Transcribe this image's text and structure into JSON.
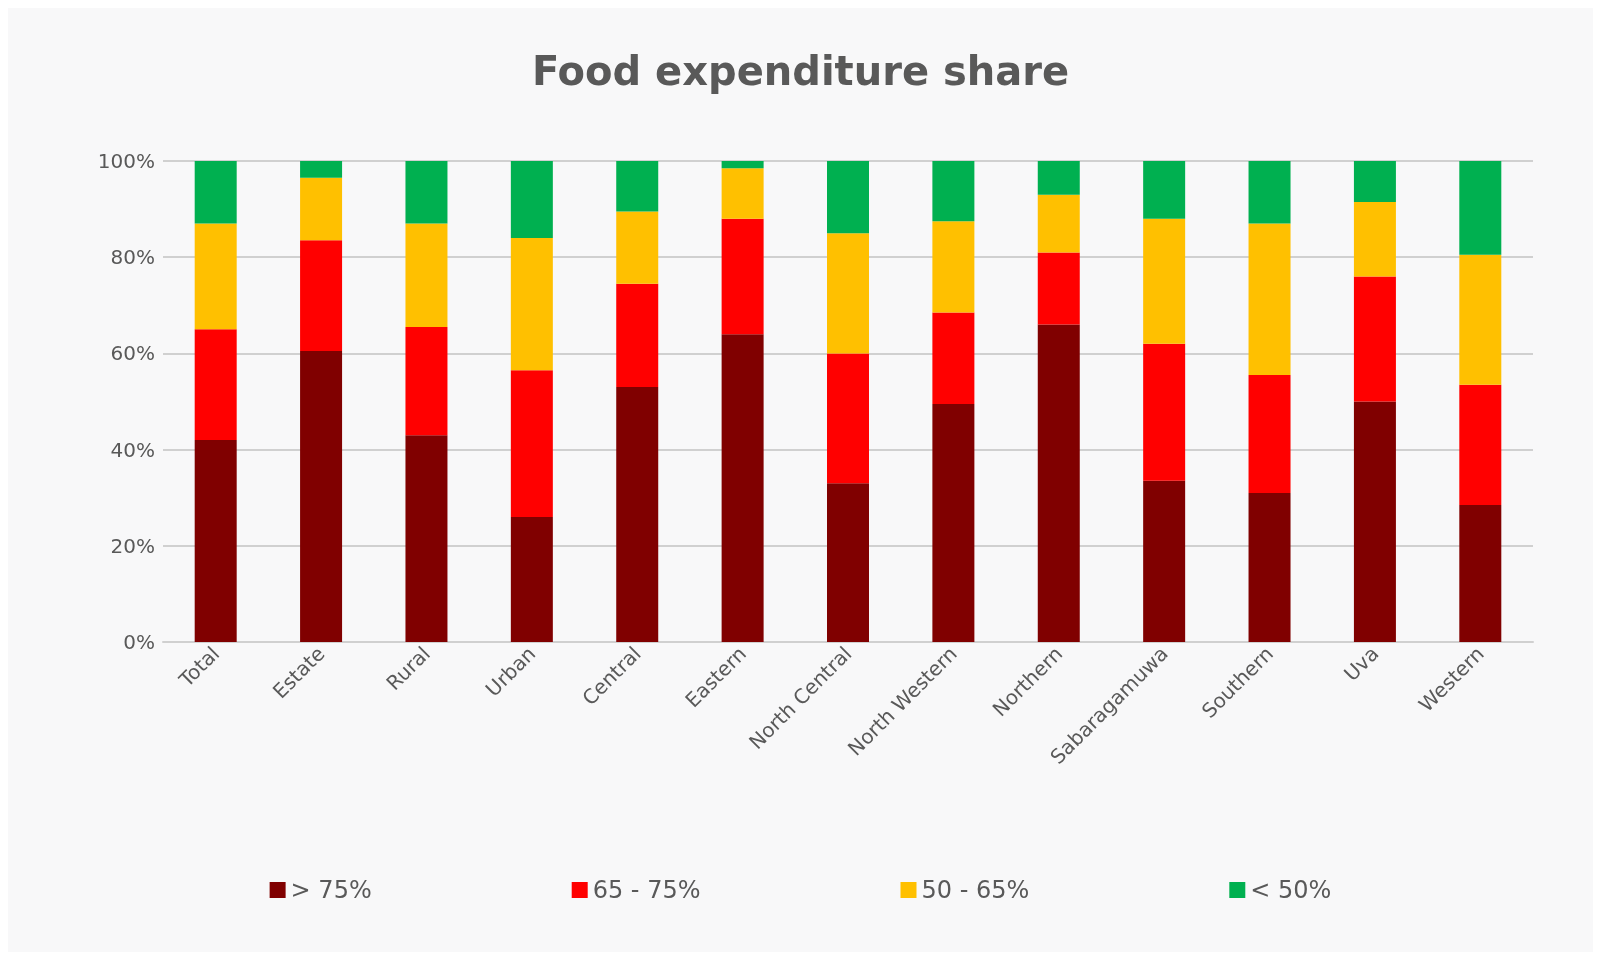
{
  "chart_data": {
    "type": "bar",
    "title": "Food expenditure share",
    "stacked": true,
    "categories": [
      "Total",
      "Estate",
      "Rural",
      "Urban",
      "Central",
      "Eastern",
      "North Central",
      "North Western",
      "Northern",
      "Sabaragamuwa",
      "Southern",
      "Uva",
      "Western"
    ],
    "series": [
      {
        "name": "> 75%",
        "color": "#800000",
        "values": [
          42,
          60.5,
          43,
          26,
          53,
          64,
          33,
          49.5,
          66,
          33.5,
          31,
          50,
          28.5
        ]
      },
      {
        "name": "65 - 75%",
        "color": "#ff0000",
        "values": [
          23,
          23,
          22.5,
          30.5,
          21.5,
          24,
          27,
          19,
          15,
          28.5,
          24.5,
          26,
          25
        ]
      },
      {
        "name": "50 - 65%",
        "color": "#ffc000",
        "values": [
          22,
          13,
          21.5,
          27.5,
          15,
          10.5,
          25,
          19,
          12,
          26,
          31.5,
          15.5,
          27
        ]
      },
      {
        "name": "< 50%",
        "color": "#00b050",
        "values": [
          13,
          3.5,
          13,
          16,
          10.5,
          1.5,
          15,
          12.5,
          7,
          12,
          13,
          8.5,
          19.5
        ]
      }
    ],
    "ylim": [
      0,
      100
    ],
    "yticks": [
      {
        "value": 0,
        "label": "0%"
      },
      {
        "value": 20,
        "label": "20%"
      },
      {
        "value": 40,
        "label": "40%"
      },
      {
        "value": 60,
        "label": "60%"
      },
      {
        "value": 80,
        "label": "80%"
      },
      {
        "value": 100,
        "label": "100%"
      }
    ],
    "grid": "y",
    "legend": "bottom"
  }
}
